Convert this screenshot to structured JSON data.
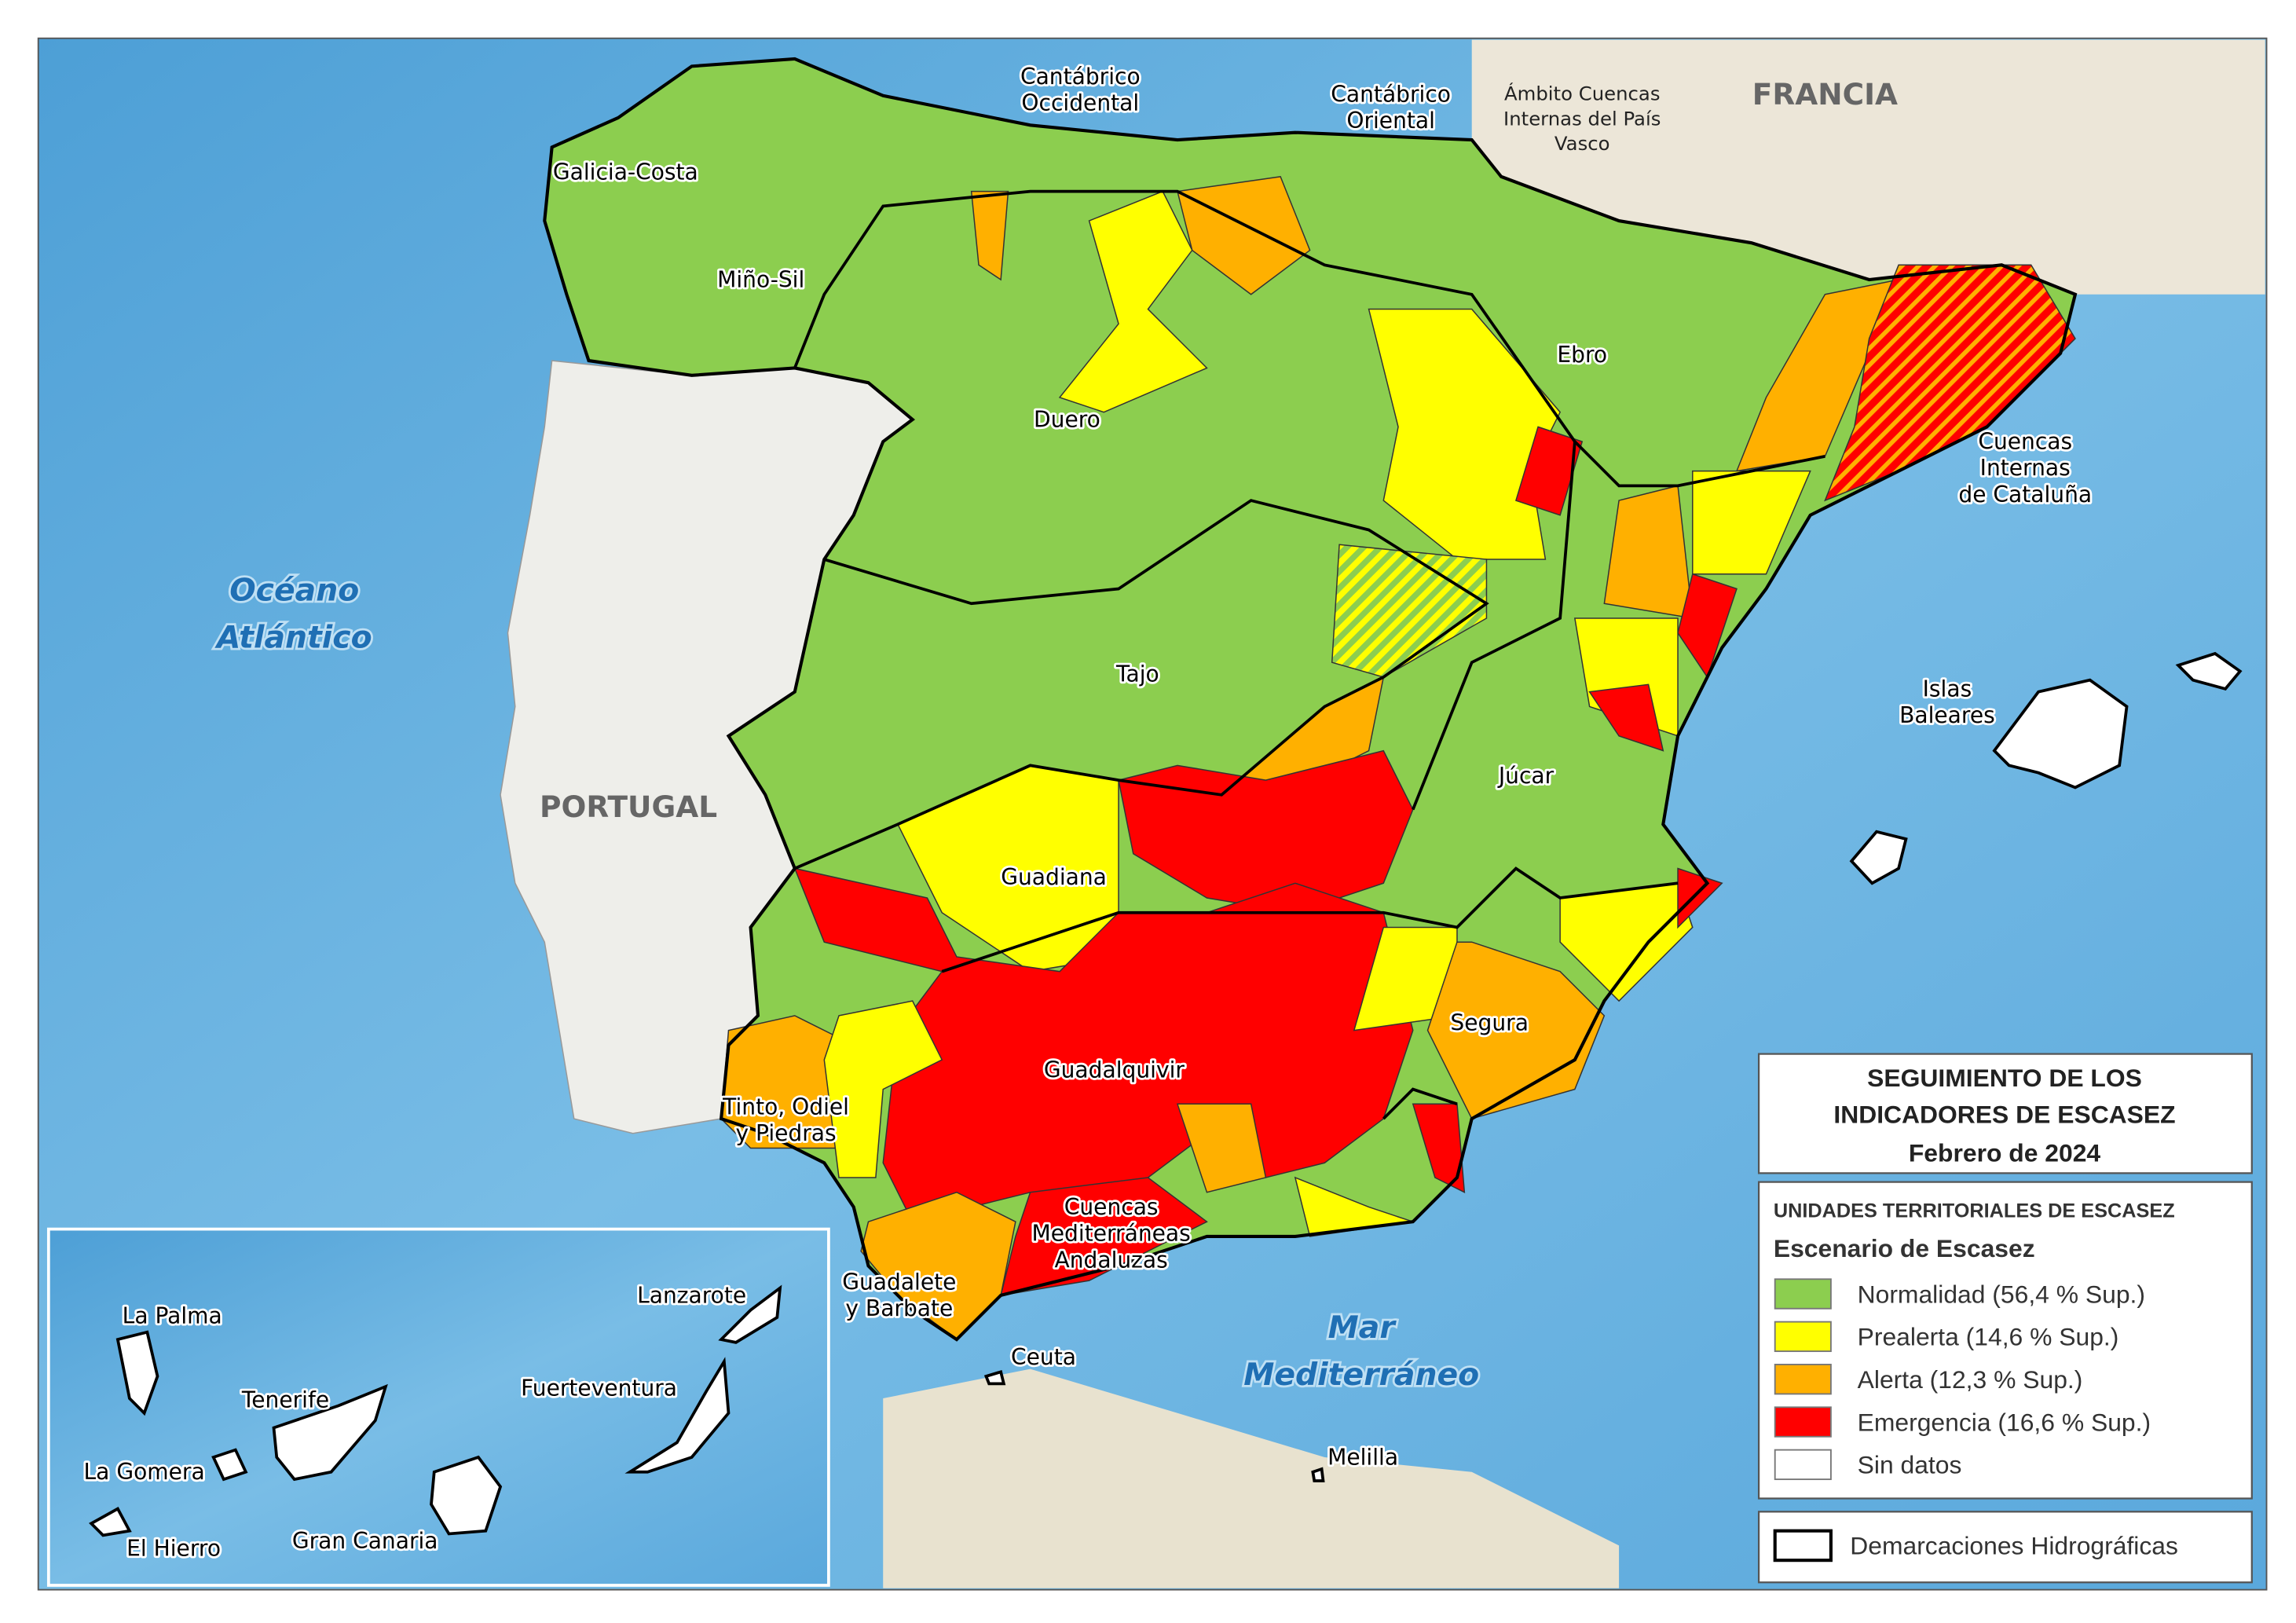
{
  "title": {
    "lines": [
      "SEGUIMIENTO DE LOS",
      "INDICADORES DE ESCASEZ"
    ],
    "date": "Febrero de 2024"
  },
  "legend": {
    "heading": "UNIDADES TERRITORIALES DE ESCASEZ",
    "subheading": "Escenario de Escasez",
    "items": [
      {
        "label": "Normalidad (56,4 % Sup.)",
        "color": "#8cce4f"
      },
      {
        "label": "Prealerta (14,6 % Sup.)",
        "color": "#ffff00"
      },
      {
        "label": "Alerta (12,3 % Sup.)",
        "color": "#ffb000"
      },
      {
        "label": "Emergencia (16,6 % Sup.)",
        "color": "#ff0000"
      },
      {
        "label": "Sin datos",
        "color": "#ffffff"
      }
    ],
    "boundary": "Demarcaciones Hidrográficas"
  },
  "regions": [
    {
      "lines": [
        "Cantábrico",
        "Occidental"
      ]
    },
    {
      "lines": [
        "Cantábrico",
        "Oriental"
      ]
    },
    {
      "lines": [
        "Galicia-Costa"
      ]
    },
    {
      "lines": [
        "Miño-Sil"
      ]
    },
    {
      "lines": [
        "Duero"
      ]
    },
    {
      "lines": [
        "Ebro"
      ]
    },
    {
      "lines": [
        "Cuencas",
        "Internas",
        "de Cataluña"
      ]
    },
    {
      "lines": [
        "Tajo"
      ]
    },
    {
      "lines": [
        "Islas",
        "Baleares"
      ]
    },
    {
      "lines": [
        "Júcar"
      ]
    },
    {
      "lines": [
        "Guadiana"
      ]
    },
    {
      "lines": [
        "Segura"
      ]
    },
    {
      "lines": [
        "Guadalquivir"
      ]
    },
    {
      "lines": [
        "Tinto, Odiel",
        "y Piedras"
      ]
    },
    {
      "lines": [
        "Cuencas",
        "Mediterráneas",
        "Andaluzas"
      ]
    },
    {
      "lines": [
        "Guadalete",
        "y Barbate"
      ]
    },
    {
      "lines": [
        "Ceuta"
      ]
    },
    {
      "lines": [
        "Melilla"
      ]
    },
    {
      "lines": [
        "La Palma"
      ]
    },
    {
      "lines": [
        "Lanzarote"
      ]
    },
    {
      "lines": [
        "Tenerife"
      ]
    },
    {
      "lines": [
        "Fuerteventura"
      ]
    },
    {
      "lines": [
        "La Gomera"
      ]
    },
    {
      "lines": [
        "El Hierro"
      ]
    },
    {
      "lines": [
        "Gran Canaria"
      ]
    }
  ],
  "basque": {
    "lines": [
      "Ámbito Cuencas",
      "Internas del País",
      "Vasco"
    ]
  },
  "countries": [
    "FRANCIA",
    "PORTUGAL"
  ],
  "seas": [
    {
      "lines": [
        "Océano",
        "Atlántico"
      ]
    },
    {
      "lines": [
        "Mar",
        "Mediterráneo"
      ]
    }
  ]
}
